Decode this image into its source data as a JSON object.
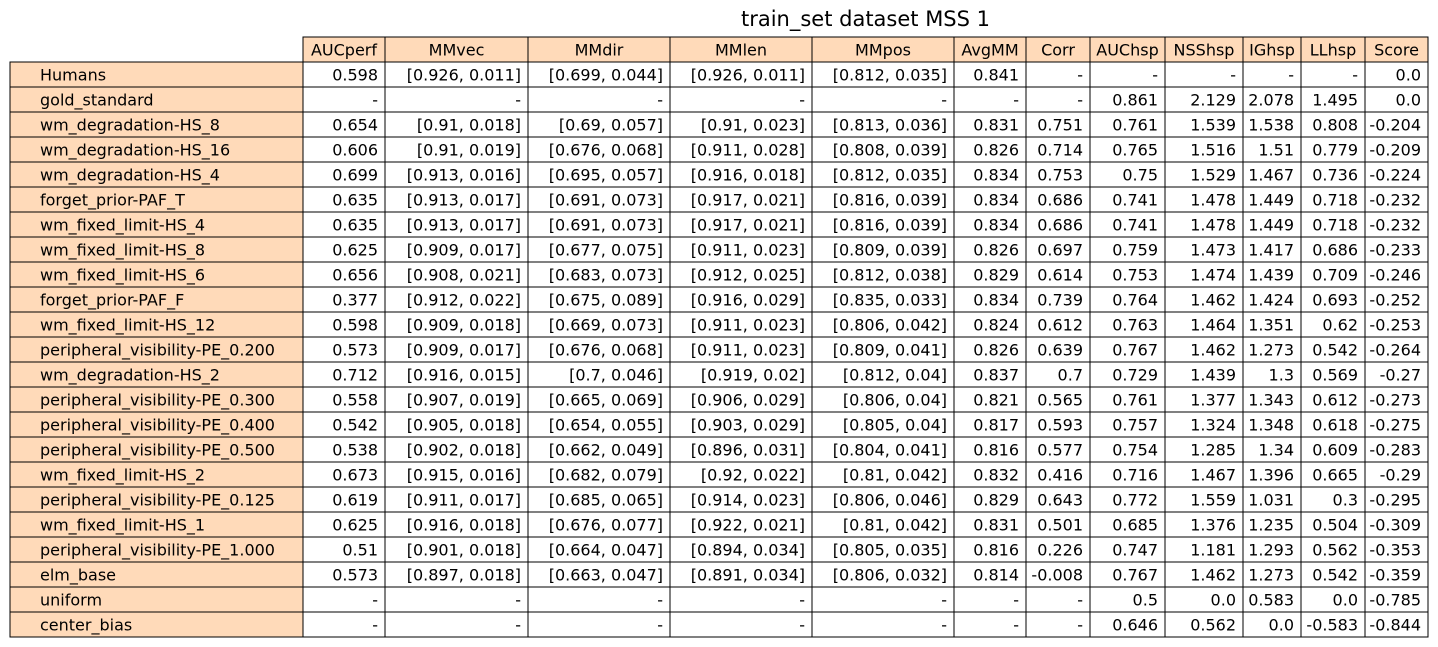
{
  "chart_data": {
    "type": "table",
    "title": "train_set dataset MSS 1",
    "header_color": "#ffdab9",
    "row_label_color": "#ffdab9",
    "columns": [
      "AUCperf",
      "MMvec",
      "MMdir",
      "MMlen",
      "MMpos",
      "AvgMM",
      "Corr",
      "AUChsp",
      "NSShsp",
      "IGhsp",
      "LLhsp",
      "Score"
    ],
    "rows": [
      {
        "label": "Humans",
        "values": [
          "0.598",
          "[0.926, 0.011]",
          "[0.699, 0.044]",
          "[0.926, 0.011]",
          "[0.812, 0.035]",
          "0.841",
          "-",
          "-",
          "-",
          "-",
          "-",
          "0.0"
        ]
      },
      {
        "label": "gold_standard",
        "values": [
          "-",
          "-",
          "-",
          "-",
          "-",
          "-",
          "-",
          "0.861",
          "2.129",
          "2.078",
          "1.495",
          "0.0"
        ]
      },
      {
        "label": "wm_degradation-HS_8",
        "values": [
          "0.654",
          "[0.91, 0.018]",
          "[0.69, 0.057]",
          "[0.91, 0.023]",
          "[0.813, 0.036]",
          "0.831",
          "0.751",
          "0.761",
          "1.539",
          "1.538",
          "0.808",
          "-0.204"
        ]
      },
      {
        "label": "wm_degradation-HS_16",
        "values": [
          "0.606",
          "[0.91, 0.019]",
          "[0.676, 0.068]",
          "[0.911, 0.028]",
          "[0.808, 0.039]",
          "0.826",
          "0.714",
          "0.765",
          "1.516",
          "1.51",
          "0.779",
          "-0.209"
        ]
      },
      {
        "label": "wm_degradation-HS_4",
        "values": [
          "0.699",
          "[0.913, 0.016]",
          "[0.695, 0.057]",
          "[0.916, 0.018]",
          "[0.812, 0.035]",
          "0.834",
          "0.753",
          "0.75",
          "1.529",
          "1.467",
          "0.736",
          "-0.224"
        ]
      },
      {
        "label": "forget_prior-PAF_T",
        "values": [
          "0.635",
          "[0.913, 0.017]",
          "[0.691, 0.073]",
          "[0.917, 0.021]",
          "[0.816, 0.039]",
          "0.834",
          "0.686",
          "0.741",
          "1.478",
          "1.449",
          "0.718",
          "-0.232"
        ]
      },
      {
        "label": "wm_fixed_limit-HS_4",
        "values": [
          "0.635",
          "[0.913, 0.017]",
          "[0.691, 0.073]",
          "[0.917, 0.021]",
          "[0.816, 0.039]",
          "0.834",
          "0.686",
          "0.741",
          "1.478",
          "1.449",
          "0.718",
          "-0.232"
        ]
      },
      {
        "label": "wm_fixed_limit-HS_8",
        "values": [
          "0.625",
          "[0.909, 0.017]",
          "[0.677, 0.075]",
          "[0.911, 0.023]",
          "[0.809, 0.039]",
          "0.826",
          "0.697",
          "0.759",
          "1.473",
          "1.417",
          "0.686",
          "-0.233"
        ]
      },
      {
        "label": "wm_fixed_limit-HS_6",
        "values": [
          "0.656",
          "[0.908, 0.021]",
          "[0.683, 0.073]",
          "[0.912, 0.025]",
          "[0.812, 0.038]",
          "0.829",
          "0.614",
          "0.753",
          "1.474",
          "1.439",
          "0.709",
          "-0.246"
        ]
      },
      {
        "label": "forget_prior-PAF_F",
        "values": [
          "0.377",
          "[0.912, 0.022]",
          "[0.675, 0.089]",
          "[0.916, 0.029]",
          "[0.835, 0.033]",
          "0.834",
          "0.739",
          "0.764",
          "1.462",
          "1.424",
          "0.693",
          "-0.252"
        ]
      },
      {
        "label": "wm_fixed_limit-HS_12",
        "values": [
          "0.598",
          "[0.909, 0.018]",
          "[0.669, 0.073]",
          "[0.911, 0.023]",
          "[0.806, 0.042]",
          "0.824",
          "0.612",
          "0.763",
          "1.464",
          "1.351",
          "0.62",
          "-0.253"
        ]
      },
      {
        "label": "peripheral_visibility-PE_0.200",
        "values": [
          "0.573",
          "[0.909, 0.017]",
          "[0.676, 0.068]",
          "[0.911, 0.023]",
          "[0.809, 0.041]",
          "0.826",
          "0.639",
          "0.767",
          "1.462",
          "1.273",
          "0.542",
          "-0.264"
        ]
      },
      {
        "label": "wm_degradation-HS_2",
        "values": [
          "0.712",
          "[0.916, 0.015]",
          "[0.7, 0.046]",
          "[0.919, 0.02]",
          "[0.812, 0.04]",
          "0.837",
          "0.7",
          "0.729",
          "1.439",
          "1.3",
          "0.569",
          "-0.27"
        ]
      },
      {
        "label": "peripheral_visibility-PE_0.300",
        "values": [
          "0.558",
          "[0.907, 0.019]",
          "[0.665, 0.069]",
          "[0.906, 0.029]",
          "[0.806, 0.04]",
          "0.821",
          "0.565",
          "0.761",
          "1.377",
          "1.343",
          "0.612",
          "-0.273"
        ]
      },
      {
        "label": "peripheral_visibility-PE_0.400",
        "values": [
          "0.542",
          "[0.905, 0.018]",
          "[0.654, 0.055]",
          "[0.903, 0.029]",
          "[0.805, 0.04]",
          "0.817",
          "0.593",
          "0.757",
          "1.324",
          "1.348",
          "0.618",
          "-0.275"
        ]
      },
      {
        "label": "peripheral_visibility-PE_0.500",
        "values": [
          "0.538",
          "[0.902, 0.018]",
          "[0.662, 0.049]",
          "[0.896, 0.031]",
          "[0.804, 0.041]",
          "0.816",
          "0.577",
          "0.754",
          "1.285",
          "1.34",
          "0.609",
          "-0.283"
        ]
      },
      {
        "label": "wm_fixed_limit-HS_2",
        "values": [
          "0.673",
          "[0.915, 0.016]",
          "[0.682, 0.079]",
          "[0.92, 0.022]",
          "[0.81, 0.042]",
          "0.832",
          "0.416",
          "0.716",
          "1.467",
          "1.396",
          "0.665",
          "-0.29"
        ]
      },
      {
        "label": "peripheral_visibility-PE_0.125",
        "values": [
          "0.619",
          "[0.911, 0.017]",
          "[0.685, 0.065]",
          "[0.914, 0.023]",
          "[0.806, 0.046]",
          "0.829",
          "0.643",
          "0.772",
          "1.559",
          "1.031",
          "0.3",
          "-0.295"
        ]
      },
      {
        "label": "wm_fixed_limit-HS_1",
        "values": [
          "0.625",
          "[0.916, 0.018]",
          "[0.676, 0.077]",
          "[0.922, 0.021]",
          "[0.81, 0.042]",
          "0.831",
          "0.501",
          "0.685",
          "1.376",
          "1.235",
          "0.504",
          "-0.309"
        ]
      },
      {
        "label": "peripheral_visibility-PE_1.000",
        "values": [
          "0.51",
          "[0.901, 0.018]",
          "[0.664, 0.047]",
          "[0.894, 0.034]",
          "[0.805, 0.035]",
          "0.816",
          "0.226",
          "0.747",
          "1.181",
          "1.293",
          "0.562",
          "-0.353"
        ]
      },
      {
        "label": "elm_base",
        "values": [
          "0.573",
          "[0.897, 0.018]",
          "[0.663, 0.047]",
          "[0.891, 0.034]",
          "[0.806, 0.032]",
          "0.814",
          "-0.008",
          "0.767",
          "1.462",
          "1.273",
          "0.542",
          "-0.359"
        ]
      },
      {
        "label": "uniform",
        "values": [
          "-",
          "-",
          "-",
          "-",
          "-",
          "-",
          "-",
          "0.5",
          "0.0",
          "0.583",
          "0.0",
          "-0.785"
        ]
      },
      {
        "label": "center_bias",
        "values": [
          "-",
          "-",
          "-",
          "-",
          "-",
          "-",
          "-",
          "0.646",
          "0.562",
          "0.0",
          "-0.583",
          "-0.844"
        ]
      }
    ]
  }
}
